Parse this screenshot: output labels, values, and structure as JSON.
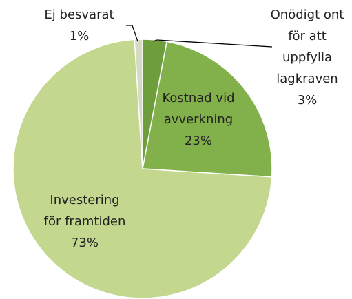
{
  "chart_data": {
    "type": "pie",
    "categories": [
      "Onödigt ont för att uppfylla lagkraven",
      "Kostnad vid avverkning",
      "Investering för framtiden",
      "Ej besvarat"
    ],
    "values": [
      3,
      23,
      73,
      1
    ],
    "value_labels": [
      "3%",
      "23%",
      "73%",
      "1%"
    ],
    "colors": [
      "#6e9d3c",
      "#82b04a",
      "#c4d78e",
      "#d4dbc2"
    ]
  }
}
